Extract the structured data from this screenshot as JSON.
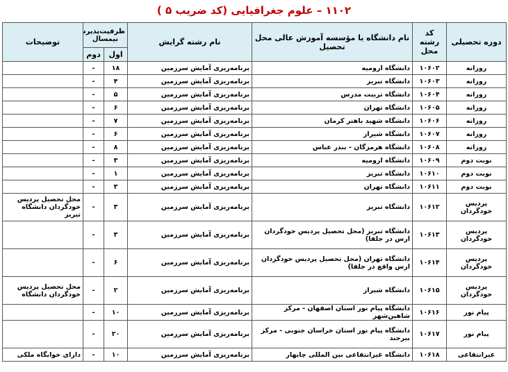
{
  "title": "۱۱۰۲ – علوم جغرافیایی (کد ضریب ۵ )",
  "headers": {
    "course": "دوره تحصیلی",
    "code": "کد رشته محل",
    "university": "نام دانشگاه یا مؤسسه آموزش عالی محل تحصیل",
    "major": "نام رشته گرایش",
    "capacity": "ظرفیت‌پذیرش نیمسال",
    "first": "اول",
    "second": "دوم",
    "notes": "توضیحات"
  },
  "rows": [
    {
      "course": "روزانه",
      "code": "۱۰۶۰۲",
      "university": "دانشگاه ارومیه",
      "major": "برنامه‌ریزی آمایش سرزمین",
      "first": "۱۸",
      "second": "-",
      "notes": ""
    },
    {
      "course": "روزانه",
      "code": "۱۰۶۰۳",
      "university": "دانشگاه تبریز",
      "major": "برنامه‌ریزی آمایش سرزمین",
      "first": "۴",
      "second": "-",
      "notes": ""
    },
    {
      "course": "روزانه",
      "code": "۱۰۶۰۴",
      "university": "دانشگاه تربیت مدرس",
      "major": "برنامه‌ریزی آمایش سرزمین",
      "first": "۵",
      "second": "-",
      "notes": ""
    },
    {
      "course": "روزانه",
      "code": "۱۰۶۰۵",
      "university": "دانشگاه تهران",
      "major": "برنامه‌ریزی آمایش سرزمین",
      "first": "۶",
      "second": "-",
      "notes": ""
    },
    {
      "course": "روزانه",
      "code": "۱۰۶۰۶",
      "university": "دانشگاه شهید باهنر کرمان",
      "major": "برنامه‌ریزی آمایش سرزمین",
      "first": "۷",
      "second": "-",
      "notes": ""
    },
    {
      "course": "روزانه",
      "code": "۱۰۶۰۷",
      "university": "دانشگاه شیراز",
      "major": "برنامه‌ریزی آمایش سرزمین",
      "first": "۶",
      "second": "-",
      "notes": ""
    },
    {
      "course": "روزانه",
      "code": "۱۰۶۰۸",
      "university": "دانشگاه هرمزگان - بندر عباس",
      "major": "برنامه‌ریزی آمایش سرزمین",
      "first": "۸",
      "second": "-",
      "notes": ""
    },
    {
      "course": "نوبت دوم",
      "code": "۱۰۶۰۹",
      "university": "دانشگاه ارومیه",
      "major": "برنامه‌ریزی آمایش سرزمین",
      "first": "۳",
      "second": "-",
      "notes": ""
    },
    {
      "course": "نوبت دوم",
      "code": "۱۰۶۱۰",
      "university": "دانشگاه تبریز",
      "major": "برنامه‌ریزی آمایش سرزمین",
      "first": "۱",
      "second": "-",
      "notes": ""
    },
    {
      "course": "نوبت دوم",
      "code": "۱۰۶۱۱",
      "university": "دانشگاه تهران",
      "major": "برنامه‌ریزی آمایش سرزمین",
      "first": "۳",
      "second": "-",
      "notes": ""
    },
    {
      "course": "پردیس خودگردان",
      "code": "۱۰۶۱۲",
      "university": "دانشگاه تبریز",
      "major": "برنامه‌ریزی آمایش سرزمین",
      "first": "۳",
      "second": "-",
      "notes": "محل تحصیل پردیس خودگردان دانشگاه تبریز"
    },
    {
      "course": "پردیس خودگردان",
      "code": "۱۰۶۱۳",
      "university": "دانشگاه تبریز (محل تحصیل پردیس خودگردان ارس در جلفا)",
      "major": "برنامه‌ریزی آمایش سرزمین",
      "first": "۳",
      "second": "-",
      "notes": ""
    },
    {
      "course": "پردیس خودگردان",
      "code": "۱۰۶۱۴",
      "university": "دانشگاه تهران (محل تحصیل پردیس خودگردان ارس واقع در جلفا)",
      "major": "برنامه‌ریزی آمایش سرزمین",
      "first": "۶",
      "second": "-",
      "notes": ""
    },
    {
      "course": "پردیس خودگردان",
      "code": "۱۰۶۱۵",
      "university": "دانشگاه شیراز",
      "major": "برنامه‌ریزی آمایش سرزمین",
      "first": "۲",
      "second": "-",
      "notes": "محل تحصیل پردیس خودگردان دانشگاه"
    },
    {
      "course": "پیام نور",
      "code": "۱۰۶۱۶",
      "university": "دانشگاه پیام نور استان اصفهان - مرکز شاهین‌شهر",
      "major": "برنامه‌ریزی آمایش سرزمین",
      "first": "۱۰",
      "second": "-",
      "notes": ""
    },
    {
      "course": "پیام نور",
      "code": "۱۰۶۱۷",
      "university": "دانشگاه پیام نور استان خراسان جنوبی - مرکز بیرجند",
      "major": "برنامه‌ریزی آمایش سرزمین",
      "first": "۲۰",
      "second": "-",
      "notes": ""
    },
    {
      "course": "غیرانتفاعی",
      "code": "۱۰۶۱۸",
      "university": "دانشگاه غیرانتفاعی بین المللی چابهار",
      "major": "برنامه‌ریزی آمایش سرزمین",
      "first": "۱۰",
      "second": "-",
      "notes": "دارای خوابگاه ملکی"
    }
  ]
}
